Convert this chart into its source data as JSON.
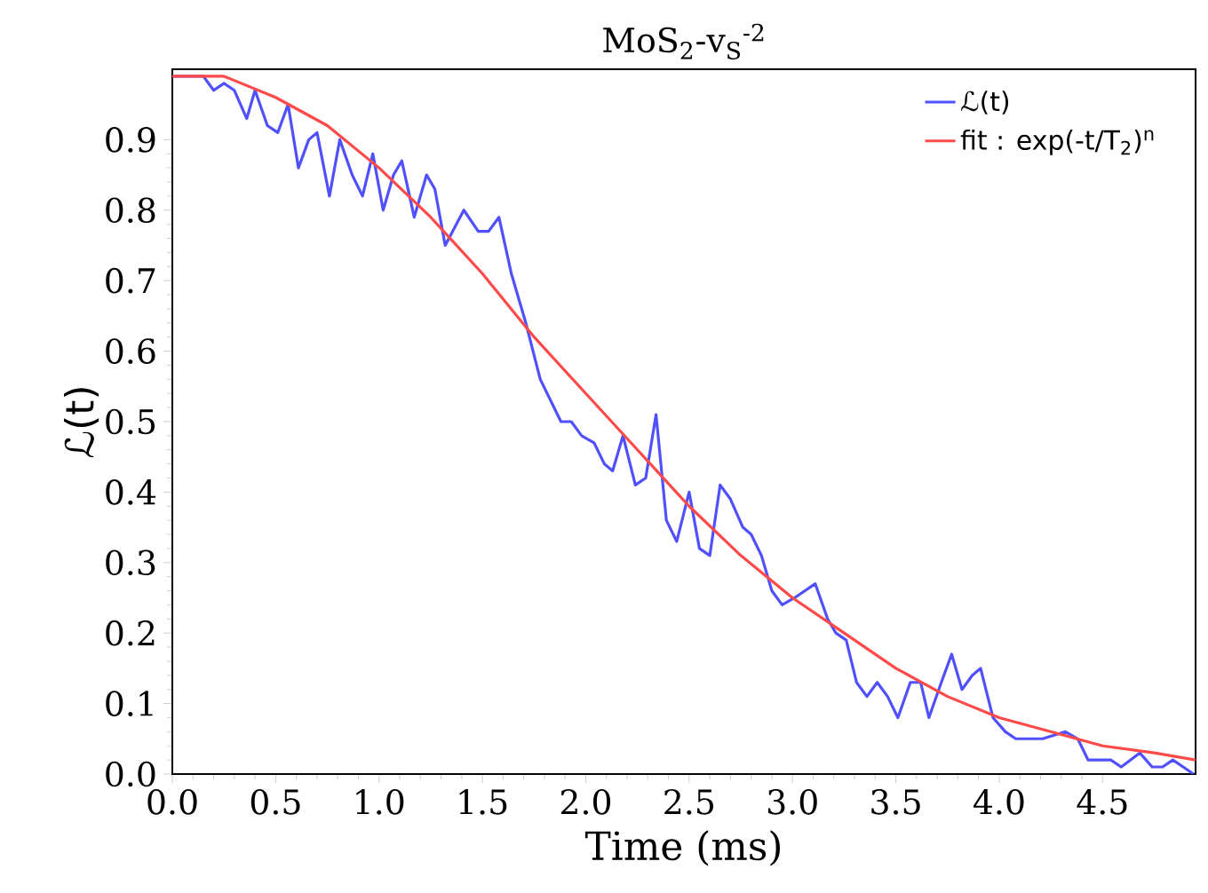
{
  "chart_data": {
    "type": "line",
    "title": "MoS$_{2}$-v$_{S}$$^{-2}$",
    "xlabel": "Time (ms)",
    "ylabel": "ℒ(t)",
    "xlim": [
      0,
      4.95
    ],
    "ylim": [
      0,
      1.0
    ],
    "xticks": [
      {
        "value": 0,
        "label": "0.0"
      },
      {
        "value": 0.5,
        "label": "0.5"
      },
      {
        "value": 1,
        "label": "1.0"
      },
      {
        "value": 1.5,
        "label": "1.5"
      },
      {
        "value": 2,
        "label": "2.0"
      },
      {
        "value": 2.5,
        "label": "2.5"
      },
      {
        "value": 3,
        "label": "3.0"
      },
      {
        "value": 3.5,
        "label": "3.5"
      },
      {
        "value": 4,
        "label": "4.0"
      },
      {
        "value": 4.5,
        "label": "4.5"
      }
    ],
    "yticks": [
      {
        "value": 0,
        "label": "0.0"
      },
      {
        "value": 0.1,
        "label": "0.1"
      },
      {
        "value": 0.2,
        "label": "0.2"
      },
      {
        "value": 0.3,
        "label": "0.3"
      },
      {
        "value": 0.4,
        "label": "0.4"
      },
      {
        "value": 0.5,
        "label": "0.5"
      },
      {
        "value": 0.6,
        "label": "0.6"
      },
      {
        "value": 0.7,
        "label": "0.7"
      },
      {
        "value": 0.8,
        "label": "0.8"
      },
      {
        "value": 0.9,
        "label": "0.9"
      }
    ],
    "legend": "top right",
    "line_style": "solid",
    "series": [
      {
        "name": "ℒ(t)",
        "color": "#5050ff",
        "x": [
          0.0,
          0.15,
          0.2,
          0.25,
          0.3,
          0.36,
          0.4,
          0.46,
          0.51,
          0.56,
          0.61,
          0.66,
          0.7,
          0.76,
          0.81,
          0.87,
          0.92,
          0.97,
          1.02,
          1.07,
          1.11,
          1.17,
          1.23,
          1.27,
          1.32,
          1.41,
          1.48,
          1.53,
          1.58,
          1.64,
          1.71,
          1.78,
          1.88,
          1.93,
          1.98,
          2.04,
          2.09,
          2.13,
          2.18,
          2.24,
          2.29,
          2.34,
          2.39,
          2.44,
          2.5,
          2.55,
          2.6,
          2.65,
          2.7,
          2.76,
          2.8,
          2.85,
          2.9,
          2.95,
          3.01,
          3.11,
          3.17,
          3.21,
          3.26,
          3.31,
          3.36,
          3.41,
          3.46,
          3.51,
          3.57,
          3.62,
          3.66,
          3.72,
          3.77,
          3.82,
          3.87,
          3.91,
          3.97,
          4.03,
          4.08,
          4.14,
          4.21,
          4.32,
          4.38,
          4.43,
          4.5,
          4.54,
          4.59,
          4.68,
          4.74,
          4.79,
          4.84,
          4.89,
          4.94
        ],
        "values": [
          0.99,
          0.99,
          0.97,
          0.98,
          0.97,
          0.93,
          0.97,
          0.92,
          0.91,
          0.95,
          0.86,
          0.9,
          0.91,
          0.82,
          0.9,
          0.85,
          0.82,
          0.88,
          0.8,
          0.85,
          0.87,
          0.79,
          0.85,
          0.83,
          0.75,
          0.8,
          0.77,
          0.77,
          0.79,
          0.71,
          0.64,
          0.56,
          0.5,
          0.5,
          0.48,
          0.47,
          0.44,
          0.43,
          0.48,
          0.41,
          0.42,
          0.51,
          0.36,
          0.33,
          0.4,
          0.32,
          0.31,
          0.41,
          0.39,
          0.35,
          0.34,
          0.31,
          0.26,
          0.24,
          0.25,
          0.27,
          0.22,
          0.2,
          0.19,
          0.13,
          0.11,
          0.13,
          0.11,
          0.08,
          0.13,
          0.13,
          0.08,
          0.13,
          0.17,
          0.12,
          0.14,
          0.15,
          0.08,
          0.06,
          0.05,
          0.05,
          0.05,
          0.06,
          0.05,
          0.02,
          0.02,
          0.02,
          0.01,
          0.03,
          0.01,
          0.01,
          0.02,
          0.01,
          0.0
        ]
      },
      {
        "name": "fit : exp(-t/T$_{2}$)$^{n}$",
        "color": "#ff4a4a",
        "x": [
          0,
          0.25,
          0.5,
          0.75,
          1,
          1.25,
          1.5,
          1.75,
          2,
          2.25,
          2.5,
          2.75,
          3,
          3.25,
          3.5,
          3.75,
          4,
          4.25,
          4.5,
          4.75,
          4.95
        ],
        "values": [
          0.99,
          0.99,
          0.96,
          0.92,
          0.86,
          0.79,
          0.71,
          0.62,
          0.54,
          0.46,
          0.38,
          0.31,
          0.25,
          0.2,
          0.15,
          0.11,
          0.08,
          0.06,
          0.04,
          0.03,
          0.02
        ]
      }
    ]
  }
}
